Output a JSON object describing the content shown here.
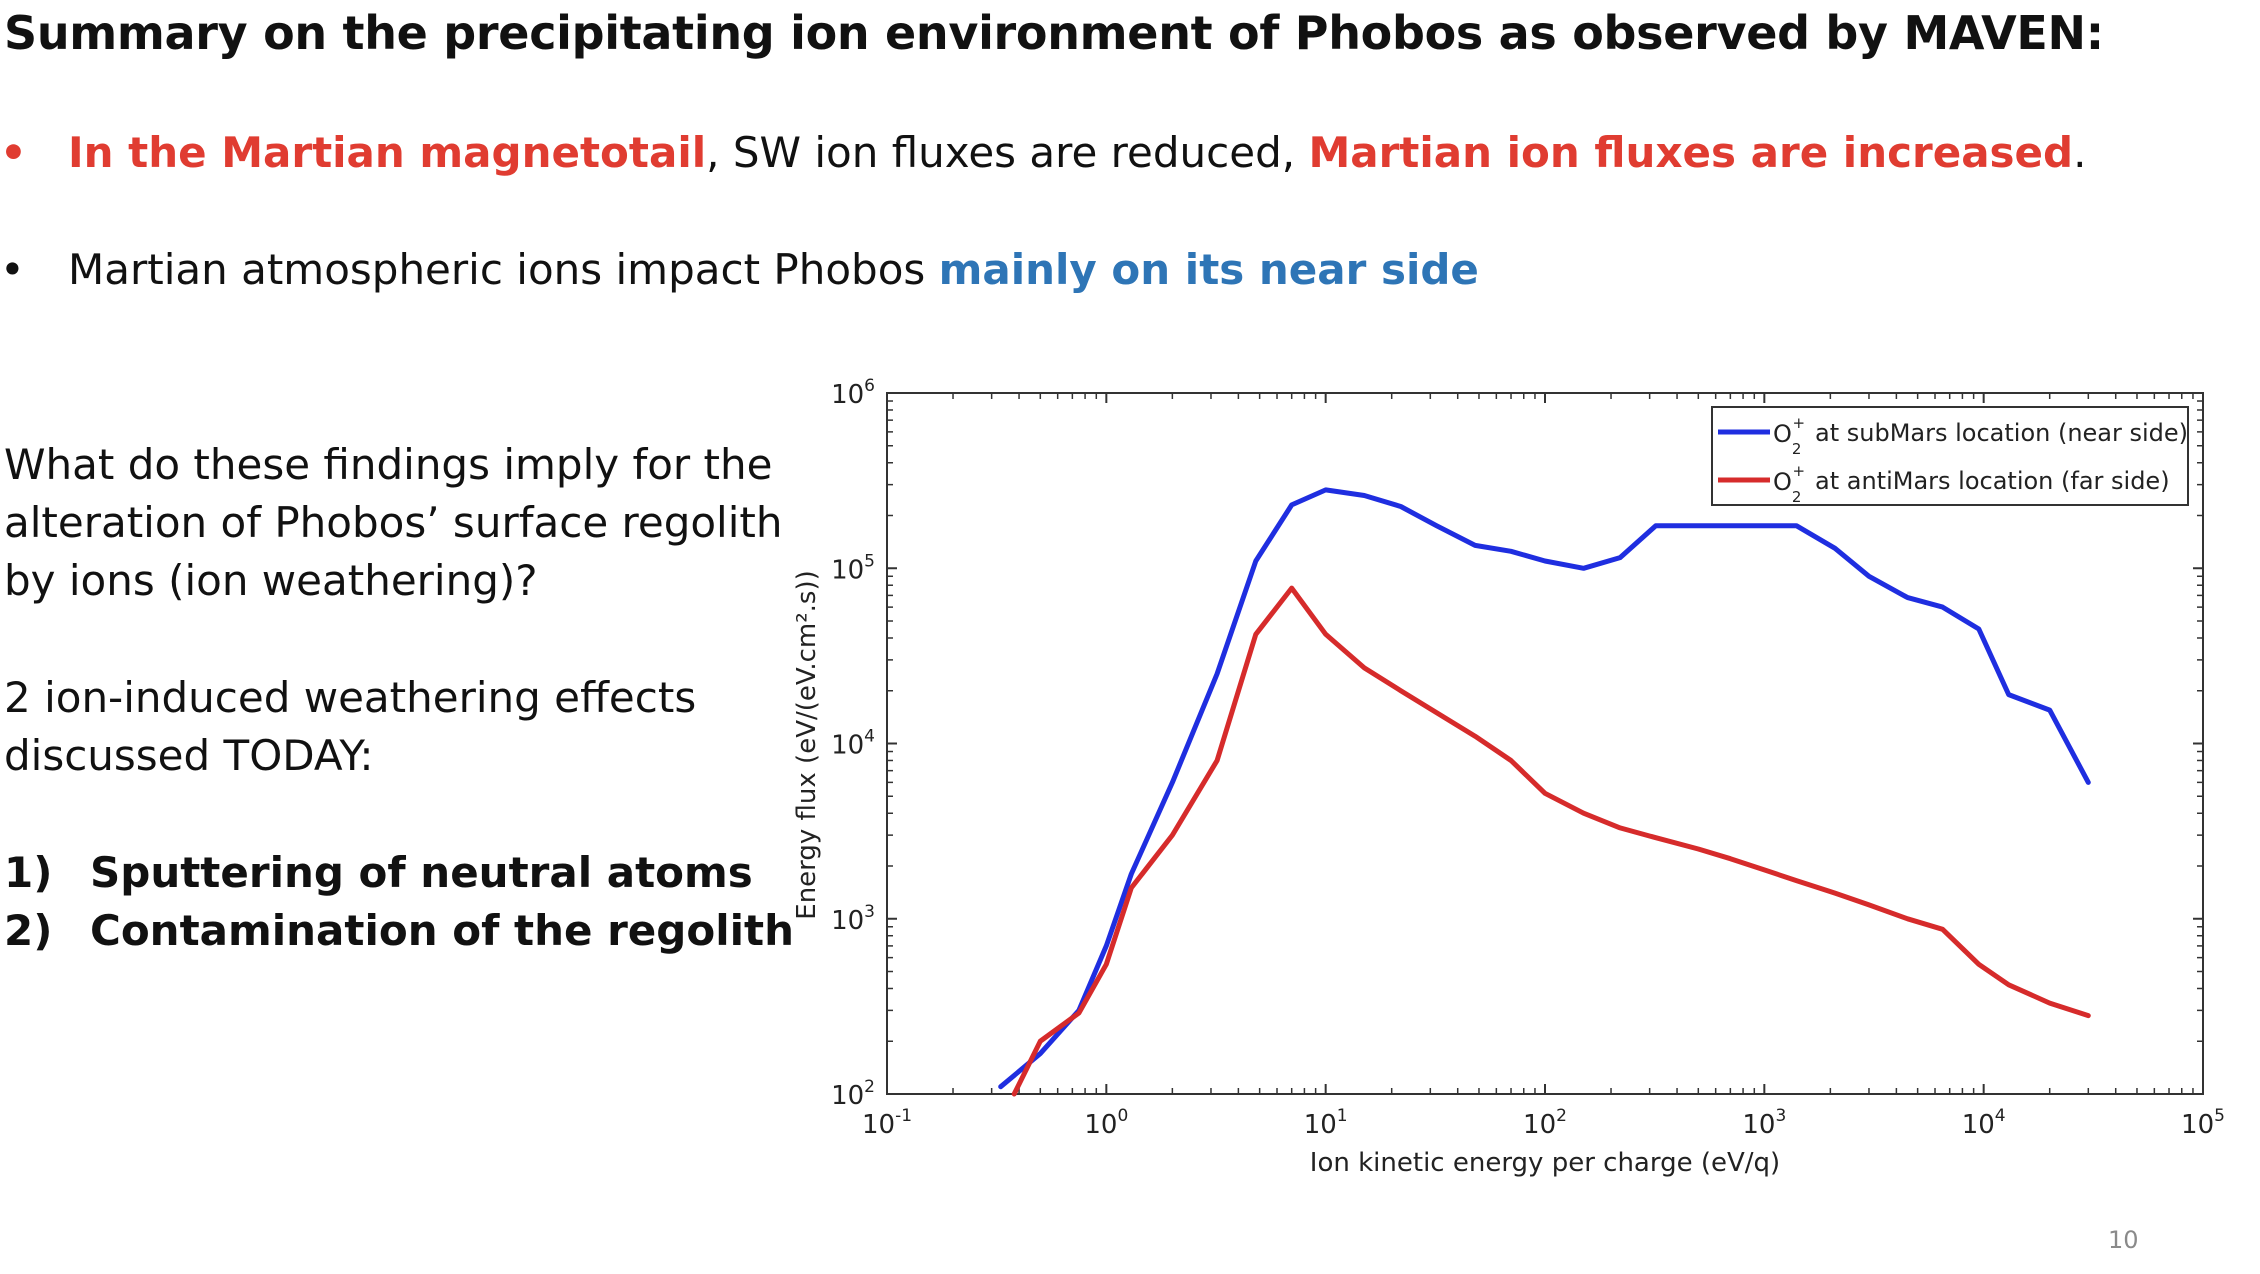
{
  "slide": {
    "title": "Summary on the precipitating ion environment of Phobos as observed by MAVEN:",
    "bullet1": {
      "marker": "•",
      "part1": "In the Martian magnetotail",
      "part2": ", SW ion fluxes are reduced, ",
      "part3": "Martian ion fluxes are increased",
      "part4": "."
    },
    "bullet2": {
      "marker": "•",
      "part1": "Martian atmospheric ions impact Phobos ",
      "part2": "mainly on its near side"
    },
    "question": {
      "line1": "What do these findings imply for the",
      "line2": "alteration of Phobos’ surface regolith",
      "line3": "by ions (ion weathering)?"
    },
    "effects": {
      "line1": "2 ion-induced weathering effects",
      "line2": "discussed TODAY:"
    },
    "items": [
      {
        "num": "1)",
        "text": "Sputtering of neutral atoms"
      },
      {
        "num": "2)",
        "text": "Contamination of the regolith"
      }
    ],
    "page_number": "10"
  },
  "colors": {
    "near_side": "#1f2ee0",
    "far_side": "#d62b2b",
    "red_text": "#e03c31",
    "blue_text": "#2e75b6"
  },
  "chart_data": {
    "type": "line",
    "xlabel": "Ion kinetic energy per charge (eV/q)",
    "ylabel": "Energy flux (eV/(eV.cm².s))",
    "x_scale": "log",
    "y_scale": "log",
    "xlim": [
      0.1,
      100000
    ],
    "ylim": [
      100,
      1000000
    ],
    "grid": false,
    "legend_position": "top-right",
    "x_ticks": [
      {
        "base": "10",
        "exp": "-1",
        "value": 0.1
      },
      {
        "base": "10",
        "exp": "0",
        "value": 1
      },
      {
        "base": "10",
        "exp": "1",
        "value": 10
      },
      {
        "base": "10",
        "exp": "2",
        "value": 100
      },
      {
        "base": "10",
        "exp": "3",
        "value": 1000
      },
      {
        "base": "10",
        "exp": "4",
        "value": 10000
      },
      {
        "base": "10",
        "exp": "5",
        "value": 100000
      }
    ],
    "y_ticks": [
      {
        "base": "10",
        "exp": "2",
        "value": 100
      },
      {
        "base": "10",
        "exp": "3",
        "value": 1000
      },
      {
        "base": "10",
        "exp": "4",
        "value": 10000
      },
      {
        "base": "10",
        "exp": "5",
        "value": 100000
      },
      {
        "base": "10",
        "exp": "6",
        "value": 1000000
      }
    ],
    "series": [
      {
        "name": "O₂⁺ at subMars location (near side)",
        "legend_text": "at subMars location (near side)",
        "ion": "O",
        "ion_sub": "2",
        "ion_sup": "+",
        "color": "#1f2ee0",
        "x": [
          0.33,
          0.5,
          0.75,
          1.0,
          1.3,
          2.0,
          3.2,
          4.8,
          7.0,
          10.0,
          15.0,
          22.0,
          32.0,
          48.0,
          70.0,
          100.0,
          150.0,
          220.0,
          320.0,
          500.0,
          700.0,
          1000.0,
          1400.0,
          2100.0,
          3000.0,
          4500.0,
          6500.0,
          9500.0,
          13000.0,
          20000.0,
          30000.0
        ],
        "y": [
          110,
          170,
          300,
          700,
          1800,
          6000,
          25000,
          110000,
          230000,
          280000,
          260000,
          225000,
          175000,
          135000,
          125000,
          110000,
          100000,
          115000,
          175000,
          175000,
          175000,
          175000,
          175000,
          130000,
          90000,
          68000,
          60000,
          45000,
          19000,
          15500,
          6000
        ]
      },
      {
        "name": "O₂⁺ at antiMars location (far side)",
        "legend_text": "at antiMars location (far side)",
        "ion": "O",
        "ion_sub": "2",
        "ion_sup": "+",
        "color": "#d62b2b",
        "x": [
          0.38,
          0.5,
          0.75,
          1.0,
          1.3,
          2.0,
          3.2,
          4.8,
          7.0,
          10.0,
          15.0,
          22.0,
          32.0,
          48.0,
          70.0,
          100.0,
          150.0,
          220.0,
          320.0,
          500.0,
          700.0,
          1000.0,
          1400.0,
          2100.0,
          3000.0,
          4500.0,
          6500.0,
          9500.0,
          13000.0,
          20000.0,
          30000.0
        ],
        "y": [
          100,
          200,
          290,
          550,
          1500,
          3000,
          8000,
          42000,
          77000,
          42000,
          27000,
          20000,
          15000,
          11000,
          8000,
          5200,
          4000,
          3300,
          2900,
          2500,
          2200,
          1900,
          1650,
          1400,
          1200,
          1000,
          870,
          550,
          420,
          330,
          280
        ]
      }
    ]
  }
}
